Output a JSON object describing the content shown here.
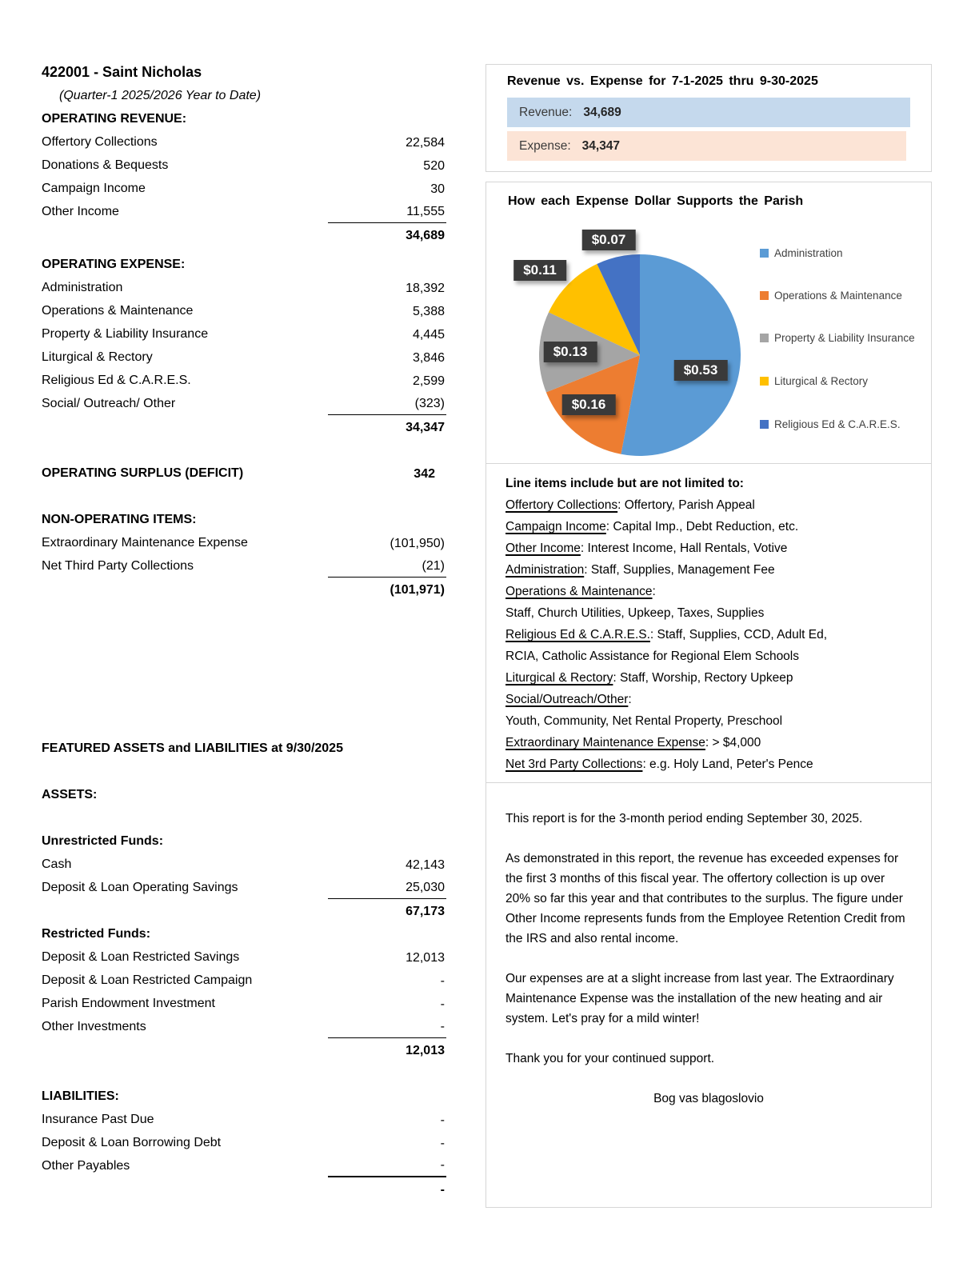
{
  "report": {
    "title": "422001 - Saint Nicholas",
    "subtitle": "(Quarter-1 2025/2026 Year to Date)",
    "operating_revenue": {
      "heading": "OPERATING REVENUE:",
      "rows": [
        {
          "label": "Offertory Collections",
          "value": "22,584"
        },
        {
          "label": "Donations & Bequests",
          "value": "520"
        },
        {
          "label": "Campaign Income",
          "value": "30"
        },
        {
          "label": "Other Income",
          "value": "11,555"
        }
      ],
      "total": "34,689"
    },
    "operating_expense": {
      "heading": "OPERATING EXPENSE:",
      "rows": [
        {
          "label": "Administration",
          "value": "18,392"
        },
        {
          "label": "Operations & Maintenance",
          "value": "5,388"
        },
        {
          "label": "Property & Liability Insurance",
          "value": "4,445"
        },
        {
          "label": "Liturgical & Rectory",
          "value": "3,846"
        },
        {
          "label": "Religious Ed & C.A.R.E.S.",
          "value": "2,599"
        },
        {
          "label": "Social/ Outreach/ Other",
          "value": "(323)"
        }
      ],
      "total": "34,347"
    },
    "surplus": {
      "label": "OPERATING SURPLUS (DEFICIT)",
      "value": "342"
    },
    "non_operating": {
      "heading": "NON-OPERATING ITEMS:",
      "rows": [
        {
          "label": "Extraordinary Maintenance Expense",
          "value": "(101,950)"
        },
        {
          "label": "Net Third Party Collections",
          "value": "(21)"
        }
      ],
      "total": "(101,971)"
    },
    "featured_heading": "FEATURED ASSETS and LIABILITIES at 9/30/2025",
    "assets_label": "ASSETS:",
    "unrestricted": {
      "heading": "Unrestricted Funds:",
      "rows": [
        {
          "label": "Cash",
          "value": "42,143"
        },
        {
          "label": "Deposit & Loan Operating Savings",
          "value": "25,030"
        }
      ],
      "total": "67,173"
    },
    "restricted": {
      "heading": "Restricted Funds:",
      "rows": [
        {
          "label": "Deposit & Loan Restricted Savings",
          "value": "12,013"
        },
        {
          "label": "Deposit & Loan Restricted Campaign",
          "value": "-"
        },
        {
          "label": "Parish Endowment Investment",
          "value": "-"
        },
        {
          "label": "Other Investments",
          "value": "-"
        }
      ],
      "total": "12,013"
    },
    "liabilities": {
      "heading": "LIABILITIES:",
      "rows": [
        {
          "label": "Insurance Past Due",
          "value": "-"
        },
        {
          "label": "Deposit & Loan Borrowing Debt",
          "value": "-"
        },
        {
          "label": "Other Payables",
          "value": "-"
        }
      ],
      "total": "-"
    }
  },
  "revexp": {
    "title": "Revenue  vs.  Expense  for  7-1-2025  thru  9-30-2025",
    "revenue_label": "Revenue:",
    "revenue_value": "34,689",
    "expense_label": "Expense:",
    "expense_value": "34,347"
  },
  "pie_box": {
    "title": "How  each  Expense  Dollar  Supports  the  Parish"
  },
  "chart_data": [
    {
      "type": "bar",
      "title": "Revenue vs. Expense for 7-1-2025 thru 9-30-2025",
      "orientation": "horizontal",
      "categories": [
        "Revenue",
        "Expense"
      ],
      "values": [
        34689,
        34347
      ],
      "value_labels": [
        "34,689",
        "34,347"
      ],
      "colors": [
        "#C5D9ED",
        "#FCE4D6"
      ]
    },
    {
      "type": "pie",
      "title": "How each Expense Dollar Supports the Parish",
      "labels": [
        "Administration",
        "Operations & Maintenance",
        "Property & Liability Insurance",
        "Liturgical & Rectory",
        "Religious Ed & C.A.R.E.S."
      ],
      "values": [
        0.53,
        0.16,
        0.13,
        0.11,
        0.07
      ],
      "data_labels": [
        "$0.53",
        "$0.16",
        "$0.13",
        "$0.11",
        "$0.07"
      ],
      "colors": [
        "#5B9BD5",
        "#ED7D31",
        "#A5A5A5",
        "#FFC000",
        "#4472C4"
      ],
      "legend_position": "right",
      "start_angle_deg": -90,
      "direction": "clockwise"
    }
  ],
  "lineitems": {
    "heading": "Line items include but are not limited to:",
    "lines": [
      {
        "term": "Offertory Collections",
        "rest": ": Offertory, Parish Appeal"
      },
      {
        "term": "Campaign Income",
        "rest": ": Capital Imp., Debt Reduction, etc."
      },
      {
        "term": "Other Income",
        "rest": ": Interest Income, Hall Rentals, Votive"
      },
      {
        "term": "Administration",
        "rest": ": Staff, Supplies, Management Fee"
      },
      {
        "term": "Operations & Maintenance",
        "rest": ":"
      },
      {
        "term": "",
        "rest": "Staff, Church Utilities, Upkeep, Taxes, Supplies"
      },
      {
        "term": "Religious Ed & C.A.R.E.S.",
        "rest": ": Staff, Supplies, CCD, Adult Ed,"
      },
      {
        "term": "",
        "rest": "RCIA, Catholic Assistance for Regional Elem Schools"
      },
      {
        "term": "Liturgical & Rectory",
        "rest": ": Staff, Worship, Rectory Upkeep"
      },
      {
        "term": "Social/Outreach/Other",
        "rest": ":"
      },
      {
        "term": "",
        "rest": "Youth, Community, Net Rental Property, Preschool"
      },
      {
        "term": "Extraordinary Maintenance Expense",
        "rest": ": > $4,000"
      },
      {
        "term": "Net 3rd Party Collections",
        "rest": ": e.g. Holy Land, Peter's Pence"
      }
    ]
  },
  "commentary": {
    "paragraphs": [
      "This report is for the 3-month period ending September 30, 2025.",
      "As demonstrated in this report, the revenue has exceeded expenses for the first 3 months of this fiscal year.  The offertory collection is up over 20% so far this year and that contributes to the surplus.  The figure under Other Income represents funds from the Employee Retention Credit from the IRS and also rental income.",
      "Our expenses are at a slight increase from last year.  The Extraordinary Maintenance Expense was the installation of the new heating and air system.  Let's pray for a mild winter!",
      "Thank you for your continued support."
    ],
    "signoff": "Bog vas blagoslovio"
  }
}
